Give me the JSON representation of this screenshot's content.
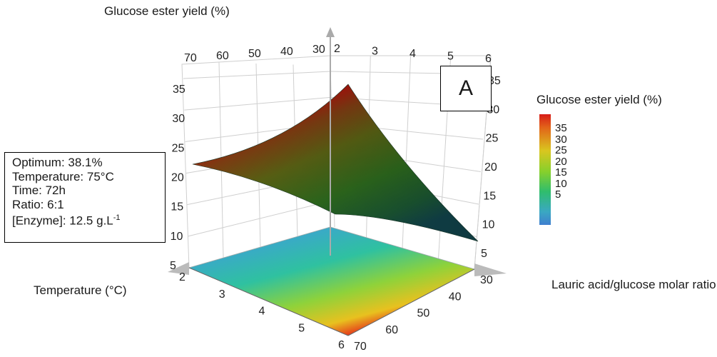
{
  "chart_data": {
    "type": "surface",
    "title": "Glucose ester yield (%)",
    "panel_label": "A",
    "xlabel": "Temperature (°C)",
    "ylabel": "Lauric acid/glucose molar ratio",
    "zlabel": "Glucose ester yield (%)",
    "x_ticks_base": [
      "2",
      "3",
      "4",
      "5",
      "6"
    ],
    "y_ticks_base": [
      "30",
      "40",
      "50",
      "60",
      "70"
    ],
    "x_ticks_back": [
      "2",
      "3",
      "4",
      "5",
      "6"
    ],
    "y_ticks_back": [
      "70",
      "60",
      "50",
      "40",
      "30"
    ],
    "z_ticks": [
      "5",
      "10",
      "15",
      "20",
      "25",
      "30",
      "35"
    ],
    "zlim": [
      5,
      35
    ],
    "surface_corners": [
      {
        "x": 2,
        "y": 30,
        "z": 37
      },
      {
        "x": 2,
        "y": 70,
        "z": 22
      },
      {
        "x": 6,
        "y": 70,
        "z": 8
      },
      {
        "x": 6,
        "y": 30,
        "z": 11
      }
    ],
    "colorbar": {
      "title": "Glucose ester yield (%)",
      "ticks": [
        "35",
        "30",
        "25",
        "20",
        "15",
        "10",
        "5"
      ],
      "colors": [
        "#d71d18",
        "#e26419",
        "#d9c61f",
        "#86d02c",
        "#2fbd6d",
        "#3aa8c2",
        "#3f7fcf"
      ]
    },
    "optimum_box": {
      "line1": "Optimum: 38.1%",
      "line2": "Temperature: 75°C",
      "line3": "Time: 72h",
      "line4": "Ratio: 6:1",
      "line5_prefix": "[Enzyme]: 12.5 g.L",
      "line5_sup": "-1"
    }
  }
}
